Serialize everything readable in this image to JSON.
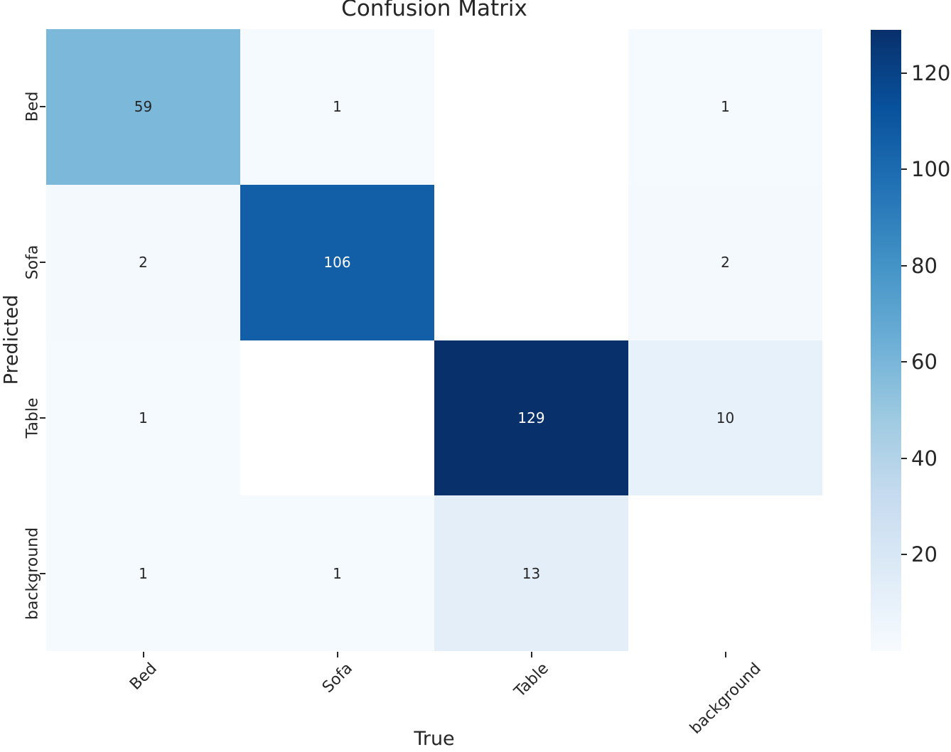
{
  "figure": {
    "background_color": "#ffffff",
    "text_color": "#262626"
  },
  "chart_data": {
    "type": "heatmap",
    "title": "Confusion Matrix",
    "xlabel": "True",
    "ylabel": "Predicted",
    "x_categories": [
      "Bed",
      "Sofa",
      "Table",
      "background"
    ],
    "y_categories": [
      "Bed",
      "Sofa",
      "Table",
      "background"
    ],
    "matrix": [
      [
        59,
        1,
        0,
        1
      ],
      [
        2,
        106,
        0,
        2
      ],
      [
        1,
        0,
        129,
        10
      ],
      [
        1,
        1,
        13,
        0
      ]
    ],
    "zero_cells_blank": true,
    "vmin": 0,
    "vmax": 129,
    "colorbar_ticks": [
      20,
      40,
      60,
      80,
      100,
      120
    ],
    "colormap_name": "Blues",
    "colormap_stops": [
      "#f7fbff",
      "#deebf7",
      "#c6dbef",
      "#9ecae1",
      "#6baed6",
      "#4292c6",
      "#2171b5",
      "#08519c",
      "#08306b"
    ],
    "masked_cell_color": "#ffffff",
    "annotation_dark_color": "#262626",
    "annotation_light_color": "#ffffff",
    "legend_position": "right-colorbar",
    "grid": false
  }
}
